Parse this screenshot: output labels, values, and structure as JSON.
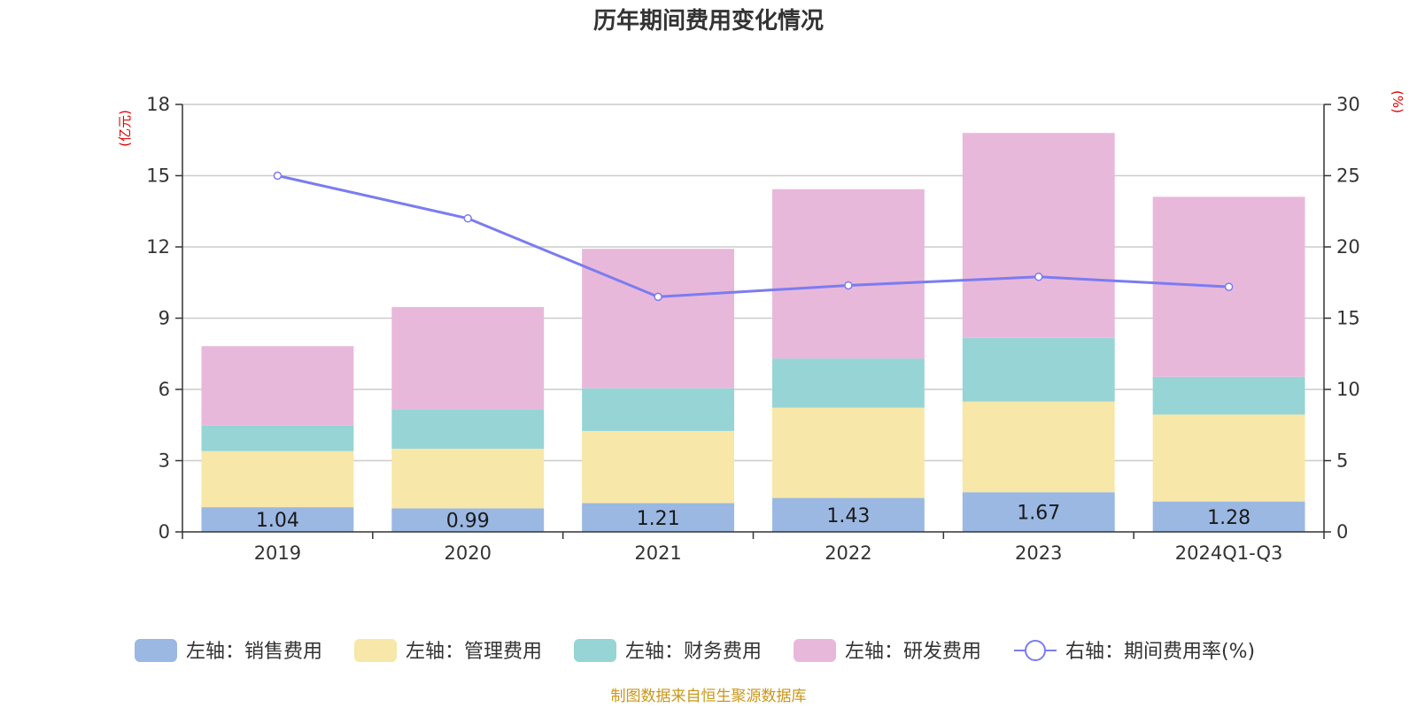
{
  "chart_data": {
    "type": "bar",
    "stacked": true,
    "title": "历年期间费用变化情况",
    "categories": [
      "2019",
      "2020",
      "2021",
      "2022",
      "2023",
      "2024Q1-Q3"
    ],
    "y_left": {
      "unit": "(亿元)",
      "min": 0,
      "max": 18,
      "ticks": [
        0,
        3,
        6,
        9,
        12,
        15,
        18
      ]
    },
    "y_right": {
      "unit": "(%)",
      "min": 0,
      "max": 30,
      "ticks": [
        0,
        5,
        10,
        15,
        20,
        25,
        30
      ]
    },
    "series": [
      {
        "name": "左轴：销售费用",
        "axis": "left",
        "type": "bar",
        "color": "#9bb8e2",
        "values": [
          1.04,
          0.99,
          1.21,
          1.43,
          1.67,
          1.28
        ],
        "show_labels": true
      },
      {
        "name": "左轴：管理费用",
        "axis": "left",
        "type": "bar",
        "color": "#f7e7a8",
        "values": [
          2.36,
          2.51,
          3.04,
          3.8,
          3.82,
          3.66
        ]
      },
      {
        "name": "左轴：财务费用",
        "axis": "left",
        "type": "bar",
        "color": "#97d4d5",
        "values": [
          1.08,
          1.67,
          1.8,
          2.07,
          2.68,
          1.59
        ]
      },
      {
        "name": "左轴：研发费用",
        "axis": "left",
        "type": "bar",
        "color": "#e8b8da",
        "values": [
          3.34,
          4.3,
          5.87,
          7.13,
          8.63,
          7.58
        ]
      },
      {
        "name": "右轴：期间费用率(%)",
        "axis": "right",
        "type": "line",
        "color": "#7b7cf0",
        "values": [
          25.0,
          22.0,
          16.5,
          17.3,
          17.9,
          17.2
        ]
      }
    ],
    "source": "制图数据来自恒生聚源数据库",
    "colors": {
      "grid": "#cccccc",
      "axis": "#333333",
      "unit": "#e00000",
      "source": "#c9971a"
    }
  }
}
